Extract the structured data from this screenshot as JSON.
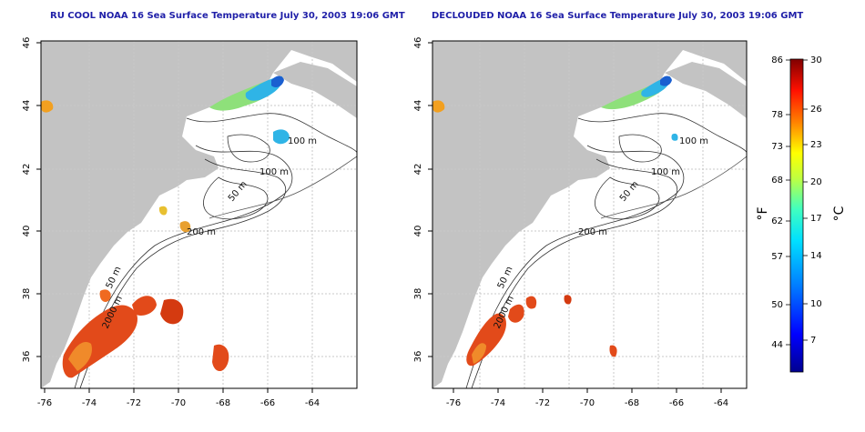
{
  "titles": {
    "left": "RU COOL NOAA 16 Sea Surface Temperature July 30, 2003 19:06 GMT",
    "right": "DECLOUDED NOAA 16 Sea Surface Temperature July 30, 2003 19:06 GMT"
  },
  "axes": {
    "lon_ticks": [
      "-76",
      "-74",
      "-72",
      "-70",
      "-68",
      "-66",
      "-64"
    ],
    "lat_ticks": [
      "46",
      "44",
      "42",
      "40",
      "38",
      "36"
    ]
  },
  "contours": {
    "left": [
      "100 m",
      "100 m",
      "50 m",
      "200 m",
      "50 m",
      "2000 m"
    ],
    "right": [
      "100 m",
      "100 m",
      "50 m",
      "200 m",
      "50 m",
      "2000 m"
    ]
  },
  "colorbar": {
    "f_ticks": [
      "86",
      "78",
      "73",
      "68",
      "62",
      "57",
      "50",
      "44"
    ],
    "c_ticks": [
      "30",
      "26",
      "23",
      "20",
      "17",
      "14",
      "10",
      "7"
    ],
    "f_unit": "°F",
    "c_unit": "°C"
  },
  "colors": {
    "land": "#c3c3c3",
    "title": "#1f1fa8",
    "warm": "#e24a1a",
    "cool": "#2fb4e6"
  }
}
